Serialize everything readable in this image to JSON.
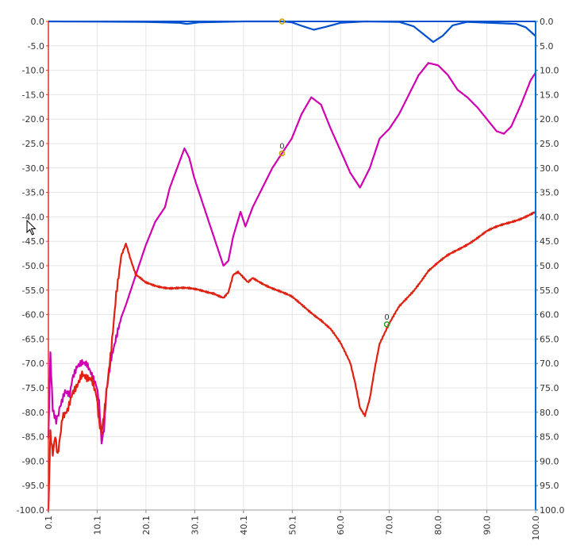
{
  "chart_data": {
    "type": "line",
    "x_ticks": [
      "0.1",
      "10.1",
      "20.1",
      "30.1",
      "40.1",
      "50.1",
      "60.0",
      "70.0",
      "80.0",
      "90.0",
      "100.0"
    ],
    "y_ticks": [
      "0.0",
      "-5.0",
      "-10.0",
      "-15.0",
      "-20.0",
      "-25.0",
      "-30.0",
      "-35.0",
      "-40.0",
      "-45.0",
      "-50.0",
      "-55.0",
      "-60.0",
      "-65.0",
      "-70.0",
      "-75.0",
      "-80.0",
      "-85.0",
      "-90.0",
      "-95.0",
      "-100.0"
    ],
    "y_ticks_right": [
      "0.0",
      "5.0",
      "10.0",
      "15.0",
      "20.0",
      "25.0",
      "30.0",
      "35.0",
      "40.0",
      "45.0",
      "50.0",
      "55.0",
      "60.0",
      "65.0",
      "70.0",
      "75.0",
      "80.0",
      "85.0",
      "90.0",
      "95.0",
      "100.0"
    ],
    "xlim": [
      0.1,
      100.0
    ],
    "ylim": [
      -100,
      0
    ],
    "grid": true,
    "series": [
      {
        "color": "#0050d0",
        "points": [
          [
            0.1,
            0
          ],
          [
            20,
            -0.1
          ],
          [
            27,
            -0.3
          ],
          [
            28.5,
            -0.5
          ],
          [
            31,
            -0.2
          ],
          [
            40,
            0
          ],
          [
            48,
            0
          ],
          [
            50,
            -0.2
          ],
          [
            52,
            -0.9
          ],
          [
            54.5,
            -1.7
          ],
          [
            57,
            -1.1
          ],
          [
            60,
            -0.3
          ],
          [
            65,
            0
          ],
          [
            72,
            -0.1
          ],
          [
            75,
            -1
          ],
          [
            77,
            -2.6
          ],
          [
            79,
            -4.2
          ],
          [
            81,
            -2.9
          ],
          [
            83,
            -0.8
          ],
          [
            86,
            -0.1
          ],
          [
            96,
            -0.5
          ],
          [
            98,
            -1.2
          ],
          [
            100,
            -3
          ]
        ]
      },
      {
        "color": "#d000b0",
        "points": [
          [
            0.1,
            -85
          ],
          [
            0.5,
            -68
          ],
          [
            1,
            -79
          ],
          [
            1.7,
            -82
          ],
          [
            2.5,
            -78
          ],
          [
            3.5,
            -75
          ],
          [
            4.5,
            -76
          ],
          [
            5,
            -73
          ],
          [
            6,
            -71
          ],
          [
            7,
            -70.5
          ],
          [
            8,
            -71
          ],
          [
            9,
            -73
          ],
          [
            10,
            -75
          ],
          [
            10.5,
            -78
          ],
          [
            11,
            -86
          ],
          [
            11.5,
            -83
          ],
          [
            12,
            -75
          ],
          [
            13,
            -68
          ],
          [
            14.5,
            -62
          ],
          [
            16,
            -58
          ],
          [
            18,
            -52
          ],
          [
            20,
            -46
          ],
          [
            22,
            -41
          ],
          [
            24,
            -38
          ],
          [
            25,
            -34
          ],
          [
            26.5,
            -30
          ],
          [
            28,
            -26
          ],
          [
            29,
            -28
          ],
          [
            30,
            -32
          ],
          [
            32,
            -38
          ],
          [
            34,
            -44
          ],
          [
            36,
            -50
          ],
          [
            37,
            -49
          ],
          [
            38,
            -44
          ],
          [
            39.5,
            -39
          ],
          [
            40.5,
            -42
          ],
          [
            42,
            -38
          ],
          [
            44,
            -34
          ],
          [
            46,
            -30
          ],
          [
            48,
            -27
          ],
          [
            50,
            -24
          ],
          [
            52,
            -19
          ],
          [
            54,
            -15.5
          ],
          [
            56,
            -17
          ],
          [
            58,
            -22
          ],
          [
            60,
            -26.5
          ],
          [
            62,
            -31
          ],
          [
            64,
            -34
          ],
          [
            66,
            -30
          ],
          [
            68,
            -24
          ],
          [
            70,
            -22
          ],
          [
            72,
            -19
          ],
          [
            74,
            -15
          ],
          [
            76,
            -11
          ],
          [
            78,
            -8.5
          ],
          [
            80,
            -9
          ],
          [
            82,
            -11
          ],
          [
            84,
            -14
          ],
          [
            86,
            -15.5
          ],
          [
            88,
            -17.5
          ],
          [
            90,
            -20
          ],
          [
            92,
            -22.5
          ],
          [
            93.5,
            -23
          ],
          [
            95,
            -21.5
          ],
          [
            97,
            -17
          ],
          [
            99,
            -12
          ],
          [
            100,
            -10.5
          ]
        ]
      },
      {
        "color": "#e02010",
        "points": [
          [
            0.1,
            -100
          ],
          [
            0.5,
            -84
          ],
          [
            1,
            -88
          ],
          [
            1.5,
            -84
          ],
          [
            2,
            -88
          ],
          [
            3,
            -80
          ],
          [
            4,
            -79
          ],
          [
            5,
            -76
          ],
          [
            6,
            -75
          ],
          [
            7,
            -73
          ],
          [
            8,
            -74
          ],
          [
            9,
            -74
          ],
          [
            10,
            -77
          ],
          [
            10.5,
            -82
          ],
          [
            11,
            -84
          ],
          [
            11.5,
            -80
          ],
          [
            12,
            -75
          ],
          [
            13,
            -66
          ],
          [
            14,
            -55
          ],
          [
            15,
            -48
          ],
          [
            16,
            -45.5
          ],
          [
            17,
            -49
          ],
          [
            18,
            -52
          ],
          [
            20,
            -53.5
          ],
          [
            22,
            -54
          ],
          [
            25,
            -54.5
          ],
          [
            28,
            -54.7
          ],
          [
            31,
            -55
          ],
          [
            34,
            -55.5
          ],
          [
            36,
            -56.5
          ],
          [
            37,
            -55.5
          ],
          [
            38,
            -52
          ],
          [
            39,
            -51.5
          ],
          [
            40,
            -52.5
          ],
          [
            41,
            -53.5
          ],
          [
            42,
            -52.5
          ],
          [
            44,
            -53.5
          ],
          [
            46,
            -54.5
          ],
          [
            48,
            -55.5
          ],
          [
            50,
            -56.5
          ],
          [
            52,
            -58
          ],
          [
            54,
            -59.5
          ],
          [
            56,
            -61
          ],
          [
            58,
            -63
          ],
          [
            60,
            -66
          ],
          [
            62,
            -70
          ],
          [
            63,
            -74
          ],
          [
            64,
            -79
          ],
          [
            65,
            -80.5
          ],
          [
            66,
            -77
          ],
          [
            67,
            -71
          ],
          [
            68,
            -66
          ],
          [
            70,
            -62
          ],
          [
            72,
            -58.5
          ],
          [
            75,
            -55
          ],
          [
            78,
            -51
          ],
          [
            82,
            -48
          ],
          [
            86,
            -45.5
          ],
          [
            90,
            -43
          ],
          [
            95,
            -41
          ],
          [
            100,
            -39
          ]
        ]
      }
    ],
    "markers": [
      {
        "label": "0",
        "x": 48,
        "y": -27,
        "color": "#c8a000"
      },
      {
        "label": "0",
        "x": 69.5,
        "y": -62,
        "color": "#30a030"
      },
      {
        "label": "0",
        "x": 48,
        "y": 0,
        "color": "#c8a000",
        "hidden_label": true
      }
    ],
    "axis_colors": {
      "left": "#e03030",
      "right": "#0070d0",
      "top": "#0050d0"
    }
  }
}
